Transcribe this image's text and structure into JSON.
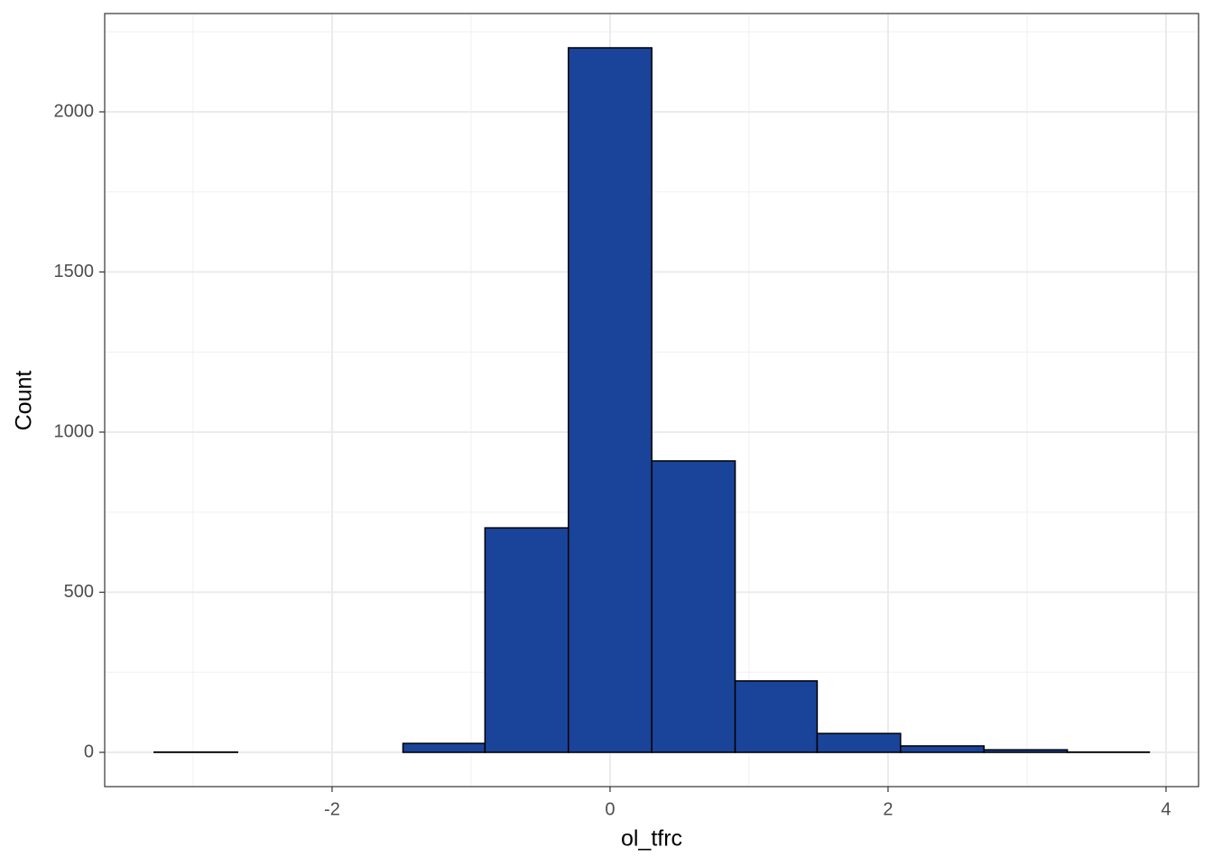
{
  "chart_data": {
    "type": "histogram",
    "x_label": "ol_tfrc",
    "y_label": "Count",
    "bins": [
      -3.28,
      -2.68,
      -2.09,
      -1.49,
      -0.9,
      -0.3,
      0.3,
      0.9,
      1.49,
      2.09,
      2.69,
      3.29,
      3.88
    ],
    "values": [
      1,
      0,
      0,
      28,
      701,
      2200,
      910,
      223,
      59,
      20,
      8,
      1
    ],
    "color": "#1a4499",
    "edge_color": "#000000",
    "xlim": [
      -3.636,
      4.234
    ],
    "ylim": [
      -107,
      2307
    ],
    "xticks": [
      -2,
      0,
      2,
      4
    ],
    "yticks": [
      0,
      500,
      1000,
      1500,
      2000
    ],
    "x_minor_grid": [
      -3,
      -1,
      1,
      3
    ],
    "y_minor_grid": [
      250,
      750,
      1250,
      1750,
      2250
    ],
    "grid": true
  }
}
